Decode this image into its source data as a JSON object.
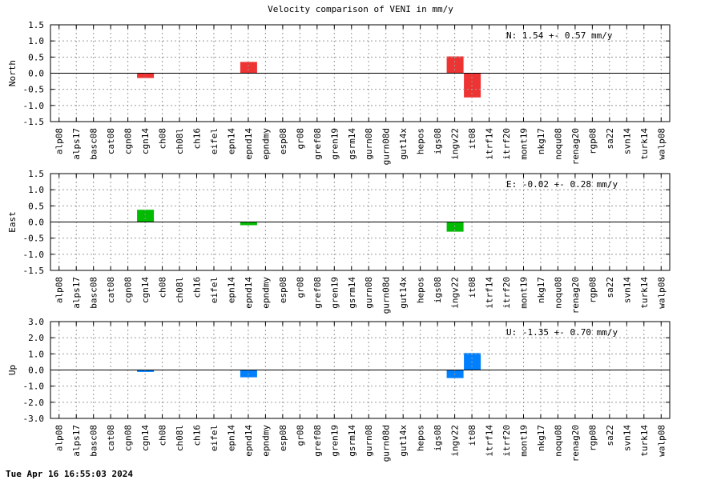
{
  "title": "Velocity comparison of VENI in mm/y",
  "footer": "Tue Apr 16 16:55:03 2024",
  "chart_data": [
    {
      "type": "bar",
      "ylabel": "North",
      "annotation": "N:   1.54 +-  0.57 mm/y",
      "color": "#ee3333",
      "ylim": [
        -1.5,
        1.5
      ],
      "yticks": [
        -1.5,
        -1.0,
        -0.5,
        0.0,
        0.5,
        1.0,
        1.5
      ],
      "ytick_labels": [
        "-1.5",
        "-1.0",
        "-0.5",
        "0.0",
        "0.5",
        "1.0",
        "1.5"
      ],
      "grid": true,
      "categories": [
        "alp08",
        "alps17",
        "basc08",
        "cat08",
        "cgn08",
        "cgn14",
        "ch08",
        "ch08l",
        "ch16",
        "eifel",
        "epn14",
        "epnd14",
        "epndmy",
        "esp08",
        "gr08",
        "gref08",
        "gren19",
        "gsrm14",
        "gurn08",
        "gurn08d",
        "gut14x",
        "hepos",
        "igs08",
        "ingv22",
        "it08",
        "itrf14",
        "itrf20",
        "mont19",
        "nkg17",
        "noqu08",
        "renag20",
        "rgp08",
        "sa22",
        "svn14",
        "turk14",
        "walp08"
      ],
      "values": [
        0,
        0,
        0,
        0,
        0,
        -0.15,
        0,
        0,
        0,
        0,
        0,
        0.35,
        0,
        0,
        0,
        0,
        0,
        0,
        0,
        0,
        0,
        0,
        0,
        0.52,
        -0.75,
        0,
        0,
        0,
        0,
        0,
        0,
        0,
        0,
        0,
        0,
        0
      ]
    },
    {
      "type": "bar",
      "ylabel": "East",
      "annotation": "E:  -0.02 +-  0.28 mm/y",
      "color": "#00bb00",
      "ylim": [
        -1.5,
        1.5
      ],
      "yticks": [
        -1.5,
        -1.0,
        -0.5,
        0.0,
        0.5,
        1.0,
        1.5
      ],
      "ytick_labels": [
        "-1.5",
        "-1.0",
        "-0.5",
        "0.0",
        "0.5",
        "1.0",
        "1.5"
      ],
      "grid": true,
      "categories": [
        "alp08",
        "alps17",
        "basc08",
        "cat08",
        "cgn08",
        "cgn14",
        "ch08",
        "ch08l",
        "ch16",
        "eifel",
        "epn14",
        "epnd14",
        "epndmy",
        "esp08",
        "gr08",
        "gref08",
        "gren19",
        "gsrm14",
        "gurn08",
        "gurn08d",
        "gut14x",
        "hepos",
        "igs08",
        "ingv22",
        "it08",
        "itrf14",
        "itrf20",
        "mont19",
        "nkg17",
        "noqu08",
        "renag20",
        "rgp08",
        "sa22",
        "svn14",
        "turk14",
        "walp08"
      ],
      "values": [
        0,
        0,
        0,
        0,
        0,
        0.38,
        0,
        0,
        0,
        0,
        0,
        -0.1,
        0,
        0,
        0,
        0,
        0,
        0,
        0,
        0,
        0,
        0,
        0,
        -0.3,
        0,
        0,
        0,
        0,
        0,
        0,
        0,
        0,
        0,
        0,
        0,
        0
      ]
    },
    {
      "type": "bar",
      "ylabel": "Up",
      "annotation": "U:  -1.35 +-  0.70 mm/y",
      "color": "#0080ff",
      "ylim": [
        -3.0,
        3.0
      ],
      "yticks": [
        -3.0,
        -2.0,
        -1.0,
        0.0,
        1.0,
        2.0,
        3.0
      ],
      "ytick_labels": [
        "-3.0",
        "-2.0",
        "-1.0",
        "0.0",
        "1.0",
        "2.0",
        "3.0"
      ],
      "grid": true,
      "categories": [
        "alp08",
        "alps17",
        "basc08",
        "cat08",
        "cgn08",
        "cgn14",
        "ch08",
        "ch08l",
        "ch16",
        "eifel",
        "epn14",
        "epnd14",
        "epndmy",
        "esp08",
        "gr08",
        "gref08",
        "gren19",
        "gsrm14",
        "gurn08",
        "gurn08d",
        "gut14x",
        "hepos",
        "igs08",
        "ingv22",
        "it08",
        "itrf14",
        "itrf20",
        "mont19",
        "nkg17",
        "noqu08",
        "renag20",
        "rgp08",
        "sa22",
        "svn14",
        "turk14",
        "walp08"
      ],
      "values": [
        0,
        0,
        0,
        0,
        0,
        -0.12,
        0,
        0,
        0,
        0,
        0,
        -0.45,
        0,
        0,
        0,
        0,
        0,
        0,
        0,
        0,
        0,
        0,
        0,
        -0.5,
        1.05,
        0,
        0,
        0,
        0,
        0,
        0,
        0,
        0,
        0,
        0,
        0
      ]
    }
  ]
}
